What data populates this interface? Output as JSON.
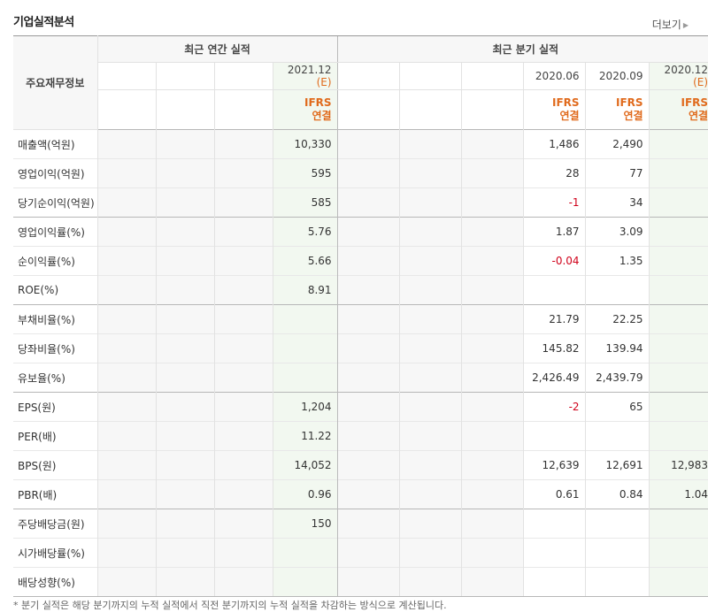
{
  "title": "기업실적분석",
  "more_label": "더보기",
  "header": {
    "label_col": "주요재무정보",
    "annual": "최근 연간 실적",
    "quarter": "최근 분기 실적",
    "annual_periods": [
      "",
      "",
      "",
      "2021.12"
    ],
    "annual_est": [
      "",
      "",
      "",
      "(E)"
    ],
    "annual_std": [
      "",
      "",
      "",
      "IFRS"
    ],
    "annual_sub": [
      "",
      "",
      "",
      "연결"
    ],
    "quarter_periods": [
      "",
      "",
      "",
      "2020.06",
      "2020.09",
      "2020.12"
    ],
    "quarter_est": [
      "",
      "",
      "",
      "",
      "",
      "(E)"
    ],
    "quarter_std": [
      "",
      "",
      "",
      "IFRS",
      "IFRS",
      "IFRS"
    ],
    "quarter_sub": [
      "",
      "",
      "",
      "연결",
      "연결",
      "연결"
    ]
  },
  "rows": [
    {
      "label": "매출액(억원)",
      "annual": [
        "",
        "",
        "",
        "10,330"
      ],
      "quarter": [
        "",
        "",
        "",
        "1,486",
        "2,490",
        ""
      ]
    },
    {
      "label": "영업이익(억원)",
      "annual": [
        "",
        "",
        "",
        "595"
      ],
      "quarter": [
        "",
        "",
        "",
        "28",
        "77",
        ""
      ]
    },
    {
      "label": "당기순이익(억원)",
      "annual": [
        "",
        "",
        "",
        "585"
      ],
      "quarter": [
        "",
        "",
        "",
        "-1",
        "34",
        ""
      ]
    },
    {
      "label": "영업이익률(%)",
      "annual": [
        "",
        "",
        "",
        "5.76"
      ],
      "quarter": [
        "",
        "",
        "",
        "1.87",
        "3.09",
        ""
      ]
    },
    {
      "label": "순이익률(%)",
      "annual": [
        "",
        "",
        "",
        "5.66"
      ],
      "quarter": [
        "",
        "",
        "",
        "-0.04",
        "1.35",
        ""
      ]
    },
    {
      "label": "ROE(%)",
      "annual": [
        "",
        "",
        "",
        "8.91"
      ],
      "quarter": [
        "",
        "",
        "",
        "",
        "",
        ""
      ]
    },
    {
      "label": "부채비율(%)",
      "annual": [
        "",
        "",
        "",
        ""
      ],
      "quarter": [
        "",
        "",
        "",
        "21.79",
        "22.25",
        ""
      ]
    },
    {
      "label": "당좌비율(%)",
      "annual": [
        "",
        "",
        "",
        ""
      ],
      "quarter": [
        "",
        "",
        "",
        "145.82",
        "139.94",
        ""
      ]
    },
    {
      "label": "유보율(%)",
      "annual": [
        "",
        "",
        "",
        ""
      ],
      "quarter": [
        "",
        "",
        "",
        "2,426.49",
        "2,439.79",
        ""
      ]
    },
    {
      "label": "EPS(원)",
      "annual": [
        "",
        "",
        "",
        "1,204"
      ],
      "quarter": [
        "",
        "",
        "",
        "-2",
        "65",
        ""
      ]
    },
    {
      "label": "PER(배)",
      "annual": [
        "",
        "",
        "",
        "11.22"
      ],
      "quarter": [
        "",
        "",
        "",
        "",
        "",
        ""
      ]
    },
    {
      "label": "BPS(원)",
      "annual": [
        "",
        "",
        "",
        "14,052"
      ],
      "quarter": [
        "",
        "",
        "",
        "12,639",
        "12,691",
        "12,983"
      ]
    },
    {
      "label": "PBR(배)",
      "annual": [
        "",
        "",
        "",
        "0.96"
      ],
      "quarter": [
        "",
        "",
        "",
        "0.61",
        "0.84",
        "1.04"
      ]
    },
    {
      "label": "주당배당금(원)",
      "annual": [
        "",
        "",
        "",
        "150"
      ],
      "quarter": [
        "",
        "",
        "",
        "",
        "",
        ""
      ]
    },
    {
      "label": "시가배당률(%)",
      "annual": [
        "",
        "",
        "",
        ""
      ],
      "quarter": [
        "",
        "",
        "",
        "",
        "",
        ""
      ]
    },
    {
      "label": "배당성향(%)",
      "annual": [
        "",
        "",
        "",
        ""
      ],
      "quarter": [
        "",
        "",
        "",
        "",
        "",
        ""
      ]
    }
  ],
  "group_starts": [
    0,
    3,
    6,
    9,
    13
  ],
  "negative_color": "#d0021b",
  "estimate_color": "#e06a1c",
  "footnote": "* 분기 실적은 해당 분기까지의 누적 실적에서 직전 분기까지의 누적 실적을 차감하는 방식으로 계산됩니다."
}
